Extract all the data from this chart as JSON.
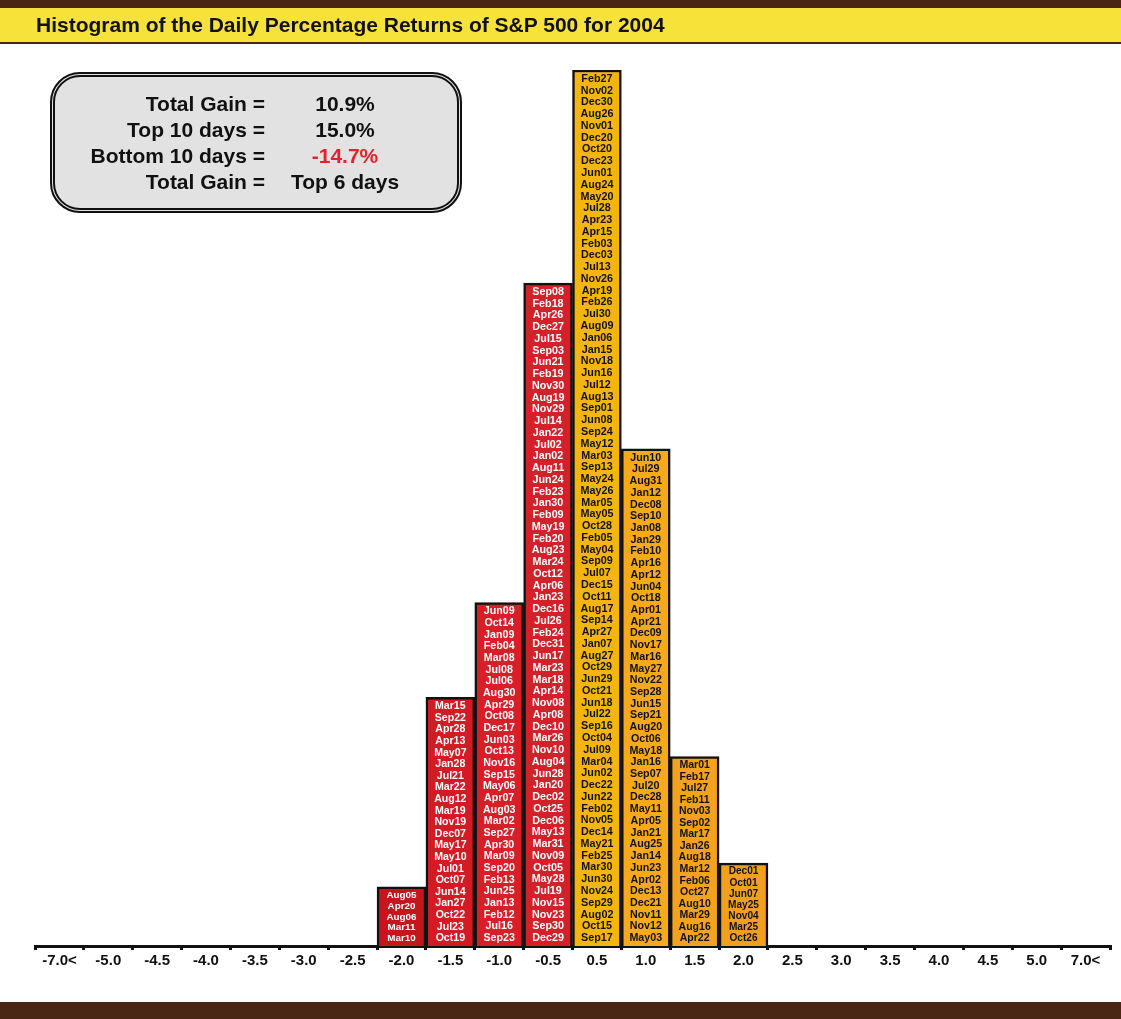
{
  "chart_data": {
    "type": "bar",
    "title": "Histogram of the Daily Percentage Returns of S&P 500 for 2004",
    "categories": [
      "-7.0<",
      "-5.0",
      "-4.5",
      "-4.0",
      "-3.5",
      "-3.0",
      "-2.5",
      "-2.0",
      "-1.5",
      "-1.0",
      "-0.5",
      "0.5",
      "1.0",
      "1.5",
      "2.0",
      "2.5",
      "3.0",
      "3.5",
      "4.0",
      "4.5",
      "5.0",
      "7.0<"
    ],
    "ylim": [
      0,
      74
    ],
    "values": [
      0,
      0,
      0,
      0,
      0,
      0,
      0,
      5,
      21,
      29,
      56,
      74,
      42,
      16,
      7,
      0,
      0,
      0,
      0,
      0,
      0,
      0
    ],
    "colors": [
      "#d41a22",
      "#d41a22",
      "#d41a22",
      "#d41a22",
      "#d41a22",
      "#d41a22",
      "#d41a22",
      "#c4161c",
      "#d41a22",
      "#d81e26",
      "#d42028",
      "#f5b50f",
      "#f6a91a",
      "#f2a21c",
      "#f2a01c",
      "#f2a01c",
      "#f2a01c",
      "#f2a01c",
      "#f2a01c",
      "#f2a01c",
      "#f2a01c",
      "#f2a01c"
    ],
    "value_labels": [
      null,
      null,
      null,
      null,
      null,
      null,
      null,
      "Aug05\nApr20\nAug06\nMar11\nMar10",
      "Mar15\nSep22\nApr28\nApr13\nMay07\nJan28\nJul21\nMar22\nAug12\nMar19\nNov19\nDec07\nMay17\nMay10\nJul01\nOct07\nJun14\nJan27\nOct22\nJul23\nOct19",
      "Jun09\nOct14\nJan09\nFeb04\nMar08\nJul08\nJul06\nAug30\nApr29\nOct08\nDec17\nJun03\nOct13\nNov16\nSep15\nMay06\nApr07\nAug03\nMar02\nSep27\nApr30\nMar09\nSep20\nFeb13\nJun25\nJan13\nFeb12\nJul16\nSep23",
      "Sep08\nFeb18\nApr26\nDec27\nJul15\nSep03\nJun21\nFeb19\nNov30\nAug19\nNov29\nJul14\nJan22\nJul02\nJan02\nAug11\nJun24\nFeb23\nJan30\nFeb09\nMay19\nFeb20\nAug23\nMar24\nOct12\nApr06\nJan23\nDec16\nJul26\nFeb24\nDec31\nJun17\nMar23\nMar18\nApr14\nNov08\nApr08\nDec10\nMar26\nNov10\nAug04\nJun28\nJan20\nDec02\nOct25\nDec06\nMay13\nMar31\nNov09\nOct05\nMay28\nJul19\nNov15\nNov23\nSep30\nDec29",
      "Feb27\nNov02\nDec30\nAug26\nNov01\nDec20\nOct20\nDec23\nJun01\nAug24\nMay20\nJul28\nApr23\nApr15\nFeb03\nDec03\nJul13\nNov26\nApr19\nFeb26\nJul30\nAug09\nJan06\nJan15\nNov18\nJun16\nJul12\nAug13\nSep01\nJun08\nSep24\nMay12\nMar03\nSep13\nMay24\nMay26\nMar05\nMay05\nOct28\nFeb05\nMay04\nSep09\nJul07\nDec15\nOct11\nAug17\nSep14\nApr27\nJan07\nAug27\nOct29\nJun29\nOct21\nJun18\nJul22\nSep16\nOct04\nJul09\nMar04\nJun02\nDec22\nJun22\nFeb02\nNov05\nDec14\nMay21\nFeb25\nMar30\nJun30\nNov24\nSep29\nAug02\nOct15\nSep17",
      "Jun10\nJul29\nAug31\nJan12\nDec08\nSep10\nJan08\nJan29\nFeb10\nApr16\nApr12\nJun04\nOct18\nApr01\nApr21\nDec09\nNov17\nMar16\nMay27\nNov22\nSep28\nJun15\nSep21\nAug20\nOct06\nMay18\nJan16\nSep07\nJul20\nDec28\nMay11\nApr05\nJan21\nAug25\nJan14\nJun23\nApr02\nDec13\nDec21\nNov11\nNov12\nMay03",
      "Mar01\nFeb17\nJul27\nFeb11\nNov03\nSep02\nMar17\nJan26\nAug18\nMar12\nFeb06\nOct27\nAug10\nMar29\nAug16\nApr22",
      "Dec01\nOct01\nJun07\nMay25\nNov04\nMar25\nOct26",
      null,
      null,
      null,
      null,
      null,
      null,
      null
    ],
    "annotations": [
      "Total Gain =",
      "10.9%",
      "Top 10 days =",
      "15.0%",
      "Bottom 10 days =",
      "-14.7%",
      "Total Gain =",
      "Top 6 days"
    ]
  }
}
